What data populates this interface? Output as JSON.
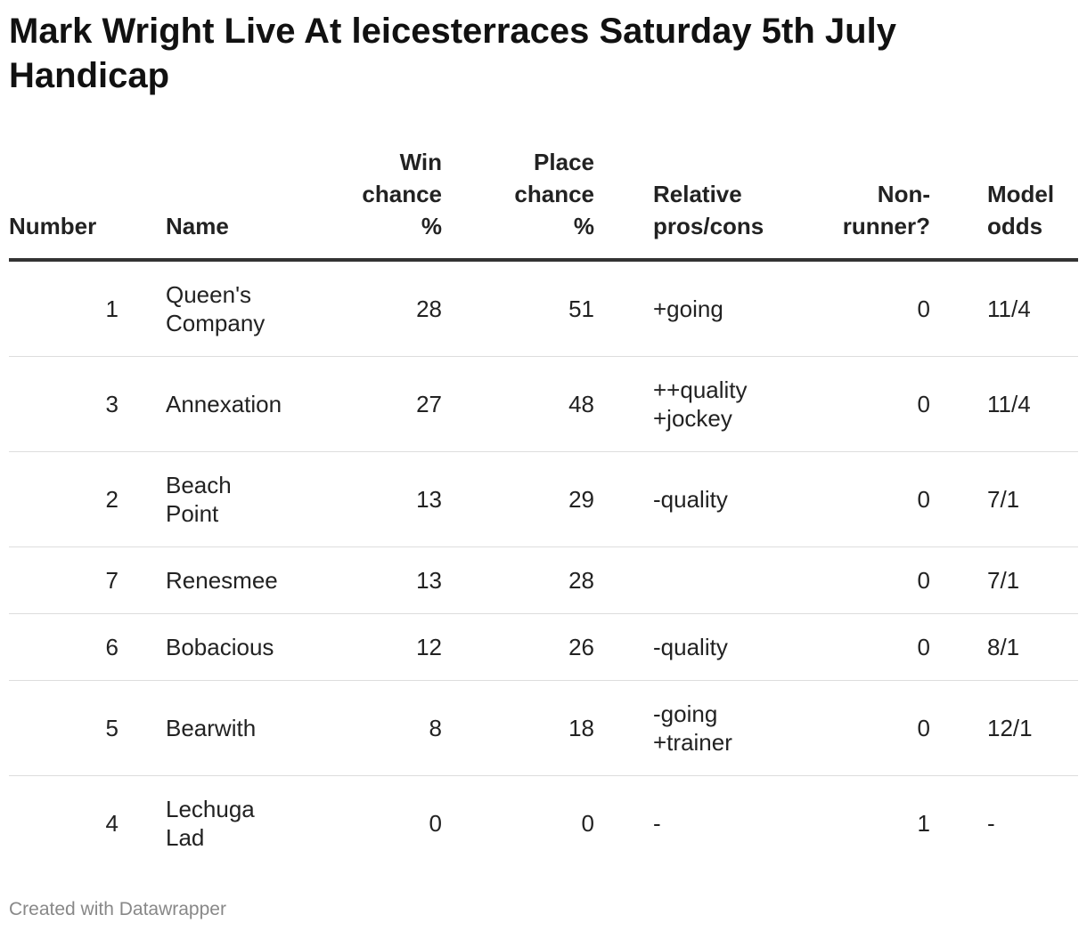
{
  "title": "Mark Wright Live At leicesterraces Saturday 5th July Handicap",
  "footer": "Created with Datawrapper",
  "chart_data": {
    "type": "table",
    "columns": [
      "Number",
      "Name",
      "Win chance %",
      "Place chance %",
      "Relative pros/cons",
      "Non-runner?",
      "Model odds"
    ],
    "rows": [
      {
        "number": 1,
        "name": "Queen's Company",
        "win": 28,
        "place": 51,
        "pros_cons": "+going",
        "non_runner": 0,
        "odds": "11/4"
      },
      {
        "number": 3,
        "name": "Annexation",
        "win": 27,
        "place": 48,
        "pros_cons": "++quality +jockey",
        "non_runner": 0,
        "odds": "11/4"
      },
      {
        "number": 2,
        "name": "Beach Point",
        "win": 13,
        "place": 29,
        "pros_cons": "-quality",
        "non_runner": 0,
        "odds": "7/1"
      },
      {
        "number": 7,
        "name": "Renesmee",
        "win": 13,
        "place": 28,
        "pros_cons": "",
        "non_runner": 0,
        "odds": "7/1"
      },
      {
        "number": 6,
        "name": "Bobacious",
        "win": 12,
        "place": 26,
        "pros_cons": "-quality",
        "non_runner": 0,
        "odds": "8/1"
      },
      {
        "number": 5,
        "name": "Bearwith",
        "win": 8,
        "place": 18,
        "pros_cons": "-going +trainer",
        "non_runner": 0,
        "odds": "12/1"
      },
      {
        "number": 4,
        "name": "Lechuga Lad",
        "win": 0,
        "place": 0,
        "pros_cons": "-",
        "non_runner": 1,
        "odds": "-"
      }
    ]
  }
}
